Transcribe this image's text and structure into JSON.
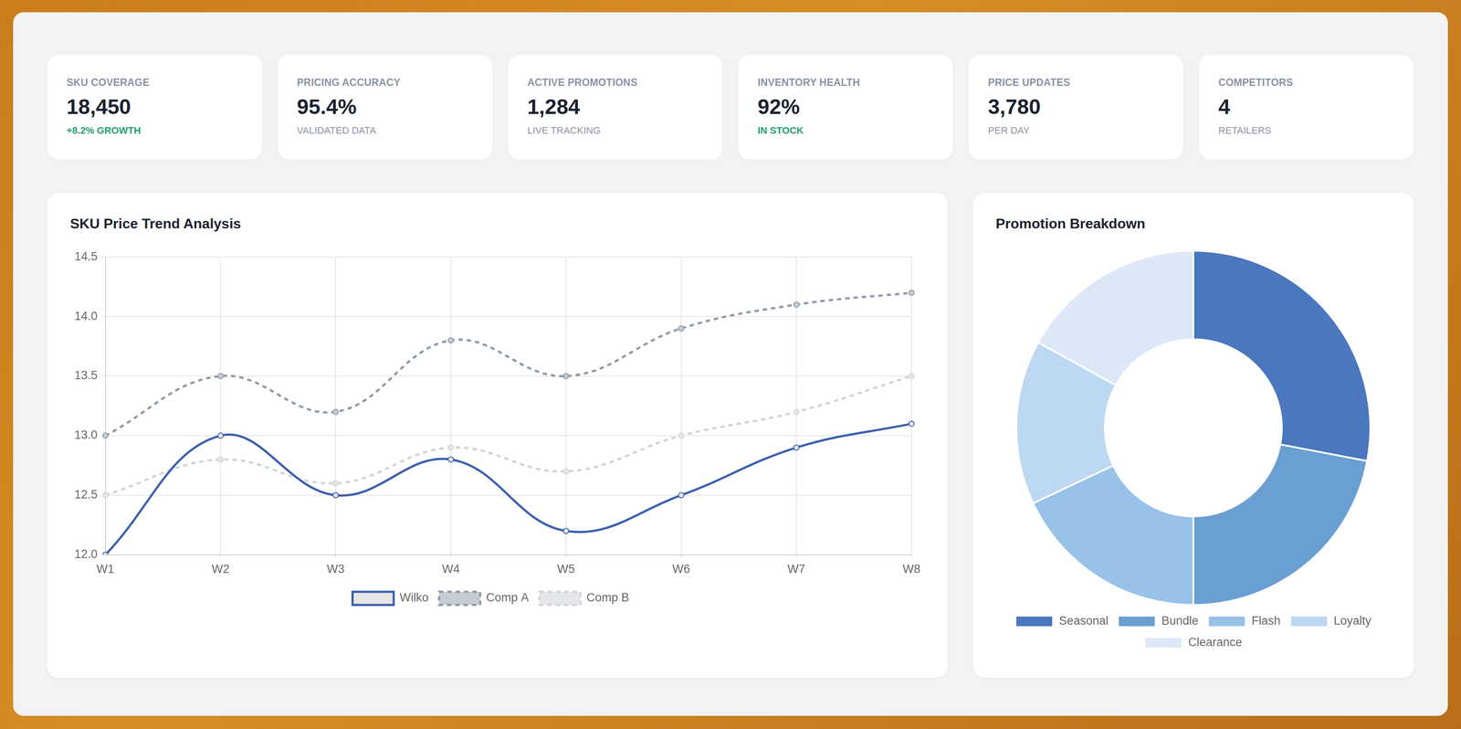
{
  "cards": [
    {
      "label": "SKU COVERAGE",
      "value": "18,450",
      "note": "+8.2% GROWTH",
      "color": "#22a06b"
    },
    {
      "label": "PRICING ACCURACY",
      "value": "95.4%",
      "note": "VALIDATED DATA"
    },
    {
      "label": "ACTIVE PROMOTIONS",
      "value": "1,284",
      "note": "LIVE TRACKING"
    },
    {
      "label": "INVENTORY HEALTH",
      "value": "92%",
      "note": "IN STOCK",
      "color": "#22a06b"
    },
    {
      "label": "PRICE UPDATES",
      "value": "3,780",
      "note": "PER DAY"
    },
    {
      "label": "COMPETITORS",
      "value": "4",
      "note": "RETAILERS"
    }
  ],
  "chart_data": [
    {
      "type": "line",
      "title": "SKU Price Trend Analysis",
      "categories": [
        "W1",
        "W2",
        "W3",
        "W4",
        "W5",
        "W6",
        "W7",
        "W8"
      ],
      "series": [
        {
          "name": "Wilko",
          "color": "#3b5fad",
          "line_style": "solid",
          "marker": "circle",
          "values": [
            12.0,
            13.0,
            12.5,
            12.8,
            12.2,
            12.5,
            12.9,
            13.1
          ]
        },
        {
          "name": "Comp A",
          "color": "#8e99a8",
          "line_style": "dashed",
          "marker": "circle",
          "values": [
            13.0,
            13.5,
            13.2,
            13.8,
            13.5,
            13.9,
            14.1,
            14.2
          ]
        },
        {
          "name": "Comp B",
          "color": "#d0d3d8",
          "line_style": "dashed",
          "marker": "circle",
          "values": [
            12.5,
            12.8,
            12.6,
            12.9,
            12.7,
            13.0,
            13.2,
            13.5
          ]
        }
      ],
      "ylim": [
        12,
        14.5
      ],
      "yticks": [
        {
          "value": 12,
          "label": "12.0"
        },
        12.5,
        {
          "value": 13,
          "label": "13.0"
        },
        13.5,
        {
          "value": 14,
          "label": "14.0"
        },
        14.5
      ],
      "grid": true,
      "legend": "bottom"
    },
    {
      "type": "doughnut",
      "title": "Promotion Breakdown",
      "categories": [
        "Seasonal",
        "Bundle",
        "Flash",
        "Loyalty",
        "Clearance"
      ],
      "values": [
        28,
        22,
        18,
        15,
        17
      ],
      "colors": [
        "#4a77bd",
        "#6a9fd4",
        "#98c2e8",
        "#bcd8f2",
        "#dce8f7"
      ],
      "legend": "bottom"
    }
  ]
}
